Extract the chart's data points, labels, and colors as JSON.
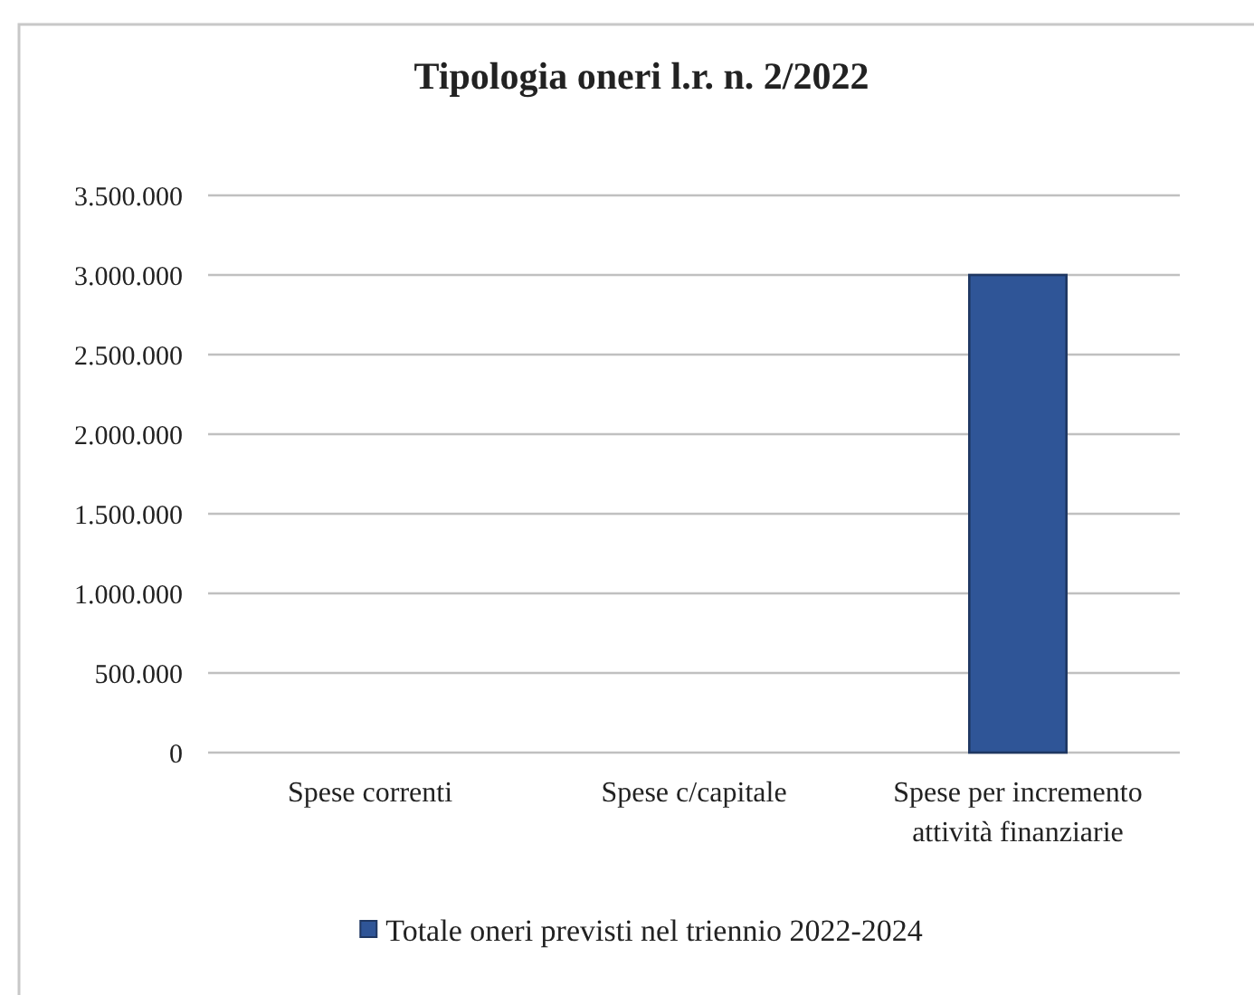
{
  "chart_data": {
    "type": "bar",
    "title": "Tipologia oneri l.r. n. 2/2022",
    "categories": [
      "Spese correnti",
      "Spese c/capitale",
      "Spese per incremento attività finanziarie"
    ],
    "series": [
      {
        "name": "Totale oneri previsti nel triennio 2022-2024",
        "color": "#2f5597",
        "values": [
          0,
          0,
          3000000
        ]
      }
    ],
    "ylim": [
      0,
      3500000
    ],
    "yticks": [
      0,
      {
        "value": 500000,
        "label": "500.000"
      },
      {
        "value": 1000000,
        "label": "1.000.000"
      },
      {
        "value": 1500000,
        "label": "1.500.000"
      },
      {
        "value": 2000000,
        "label": "2.000.000"
      },
      {
        "value": 2500000,
        "label": "2.500.000"
      },
      {
        "value": 3000000,
        "label": "3.000.000"
      },
      {
        "value": 3500000,
        "label": "3.500.000"
      }
    ],
    "grid": "y",
    "legend": "bottom"
  }
}
